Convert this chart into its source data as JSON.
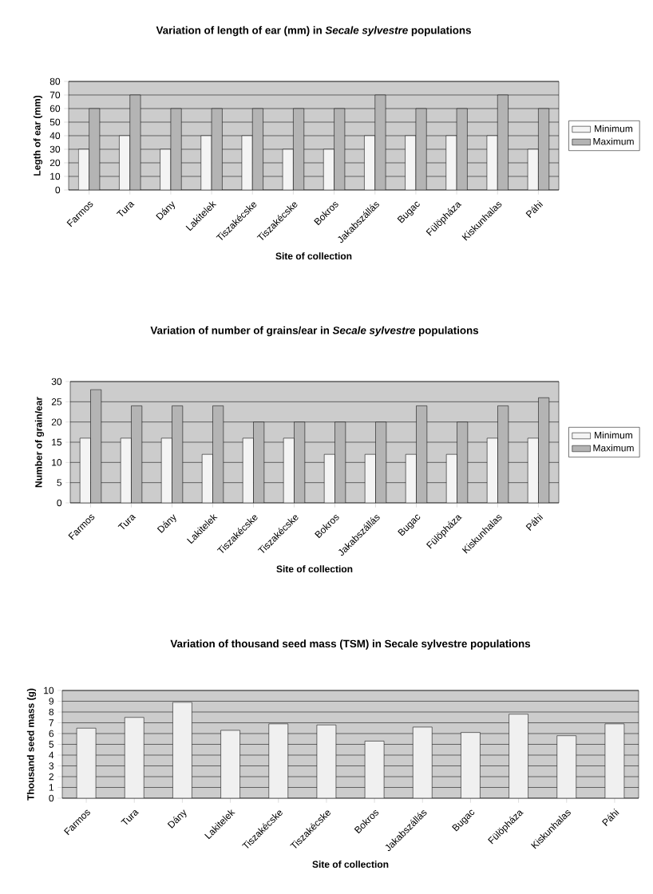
{
  "chart_data": [
    {
      "type": "bar",
      "title": "Variation of length of ear (mm) in *Secale sylvestre* populations",
      "xlabel": "Site of collection",
      "ylabel": "Legth of ear (mm)",
      "categories": [
        "Farmos",
        "Tura",
        "Dány",
        "Lakitelek",
        "Tiszakécske",
        "Tiszakécske",
        "Bokros",
        "Jakabszállás",
        "Bugac",
        "Fülöpháza",
        "Kiskunhalas",
        "Páhi"
      ],
      "series": [
        {
          "name": "Minimum",
          "color": "#f4f4f4",
          "values": [
            30,
            40,
            30,
            40,
            40,
            30,
            30,
            40,
            40,
            40,
            40,
            30
          ]
        },
        {
          "name": "Maximum",
          "color": "#b4b4b4",
          "values": [
            60,
            70,
            60,
            60,
            60,
            60,
            60,
            70,
            60,
            60,
            70,
            60
          ]
        }
      ],
      "ylim": [
        0,
        80
      ],
      "yticks": [
        0,
        10,
        20,
        30,
        40,
        50,
        60,
        70,
        80
      ],
      "grid": "y",
      "legend": "right"
    },
    {
      "type": "bar",
      "title": "Variation of number of grains/ear in *Secale sylvestre* populations",
      "xlabel": "Site of collection",
      "ylabel": "Number of grain/ear",
      "categories": [
        "Farmos",
        "Tura",
        "Dány",
        "Lakitelek",
        "Tiszakécske",
        "Tiszakécske",
        "Bokros",
        "Jakabszállás",
        "Bugac",
        "Fülöpháza",
        "Kiskunhalas",
        "Páhi"
      ],
      "series": [
        {
          "name": "Minimum",
          "color": "#f4f4f4",
          "values": [
            16,
            16,
            16,
            12,
            16,
            16,
            12,
            12,
            12,
            12,
            16,
            16
          ]
        },
        {
          "name": "Maximum",
          "color": "#b4b4b4",
          "values": [
            28,
            24,
            24,
            24,
            20,
            20,
            20,
            20,
            24,
            20,
            24,
            26
          ]
        }
      ],
      "ylim": [
        0,
        30
      ],
      "yticks": [
        0,
        5,
        10,
        15,
        20,
        25,
        30
      ],
      "grid": "y",
      "legend": "right"
    },
    {
      "type": "bar",
      "title": "Variation of thousand seed mass (TSM) in Secale sylvestre populations",
      "xlabel": "Site of collection",
      "ylabel": "Thousand seed mass (g)",
      "categories": [
        "Farmos",
        "Tura",
        "Dány",
        "Lakitelek",
        "Tiszakécske",
        "Tiszakécske",
        "Bokros",
        "Jakabszállás",
        "Bugac",
        "Fülöpháza",
        "Kiskunhalas",
        "Páhi"
      ],
      "values": [
        6.5,
        7.5,
        8.9,
        6.3,
        6.9,
        6.8,
        5.3,
        6.6,
        6.1,
        7.8,
        5.8,
        6.9
      ],
      "color": "#f0f0f0",
      "ylim": [
        0,
        10
      ],
      "yticks": [
        0,
        1,
        2,
        3,
        4,
        5,
        6,
        7,
        8,
        9,
        10
      ],
      "grid": "y"
    }
  ]
}
